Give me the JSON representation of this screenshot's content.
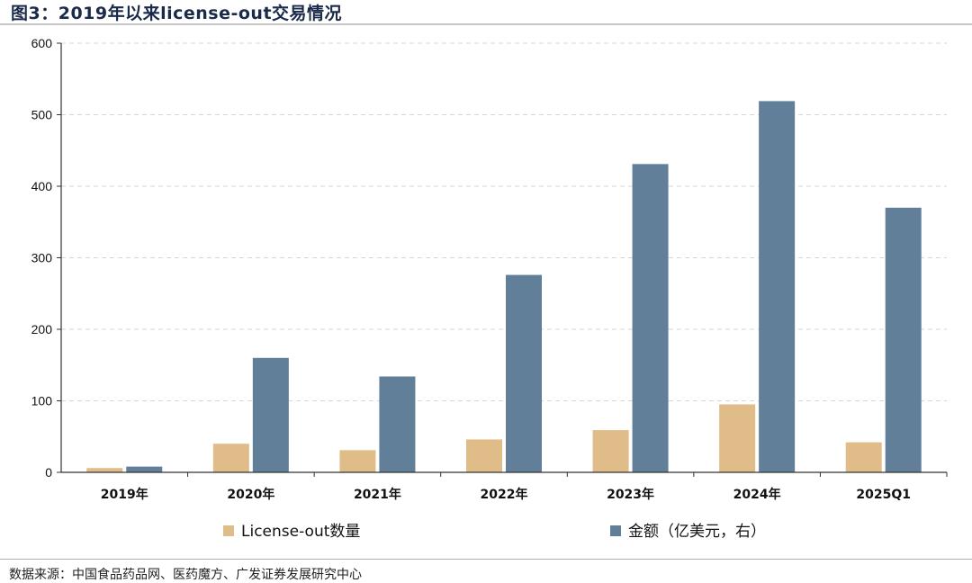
{
  "figure": {
    "title": "图3：2019年以来license-out交易情况",
    "source": "数据来源：中国食品药品网、医药魔方、广发证券发展研究中心"
  },
  "colors": {
    "count": "#e0bd88",
    "amount": "#617f98",
    "grid": "#d6d6d6",
    "axis": "#333333"
  },
  "chart_data": {
    "type": "bar",
    "categories": [
      "2019年",
      "2020年",
      "2021年",
      "2022年",
      "2023年",
      "2024年",
      "2025Q1"
    ],
    "series": [
      {
        "name": "License-out数量",
        "values": [
          6,
          40,
          31,
          46,
          59,
          95,
          42
        ]
      },
      {
        "name": "金额（亿美元，右）",
        "values": [
          8,
          160,
          134,
          276,
          431,
          519,
          370
        ]
      }
    ],
    "yticks": [
      "0",
      "100",
      "200",
      "300",
      "400",
      "500",
      "600"
    ],
    "ylim": [
      0,
      600
    ],
    "grid": true,
    "legend_position": "bottom"
  }
}
